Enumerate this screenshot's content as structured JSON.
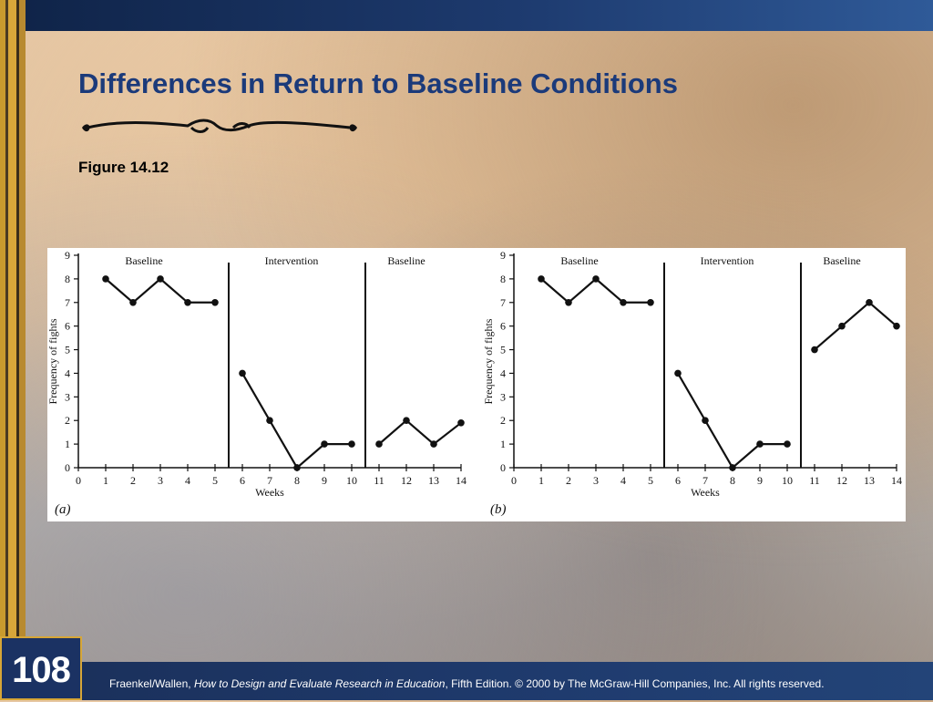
{
  "slide": {
    "title": "Differences in Return to Baseline Conditions",
    "figure_label": "Figure 14.12",
    "page_number": "108"
  },
  "footer": {
    "authors": "Fraenkel/Wallen, ",
    "book_title": "How to Design and Evaluate Research in Education",
    "rest": ", Fifth Edition. © 2000 by The McGraw-Hill Companies, Inc. All rights reserved."
  },
  "colors": {
    "title": "#1b3a7a",
    "top_bar": "#1d3a6e",
    "accent_gold": "#d7a637"
  },
  "chart_data": [
    {
      "type": "line",
      "panel_label": "(a)",
      "xlabel": "Weeks",
      "ylabel": "Frequency of fights",
      "xlim": [
        0,
        14
      ],
      "ylim": [
        0,
        9
      ],
      "x_ticks": [
        0,
        1,
        2,
        3,
        4,
        5,
        6,
        7,
        8,
        9,
        10,
        11,
        12,
        13,
        14
      ],
      "y_ticks": [
        0,
        1,
        2,
        3,
        4,
        5,
        6,
        7,
        8,
        9
      ],
      "phase_dividers": [
        5.5,
        10.5
      ],
      "phase_labels": [
        {
          "label": "Baseline",
          "center": 2.4
        },
        {
          "label": "Intervention",
          "center": 7.8
        },
        {
          "label": "Baseline",
          "center": 12.0
        }
      ],
      "segments": [
        {
          "x": [
            1,
            2,
            3,
            4,
            5
          ],
          "y": [
            8,
            7,
            8,
            7,
            7
          ]
        },
        {
          "x": [
            6,
            7,
            8,
            9,
            10
          ],
          "y": [
            4,
            2,
            0,
            1,
            1
          ]
        },
        {
          "x": [
            11,
            12,
            13,
            14
          ],
          "y": [
            1,
            2,
            1,
            1.9
          ]
        }
      ]
    },
    {
      "type": "line",
      "panel_label": "(b)",
      "xlabel": "Weeks",
      "ylabel": "Frequency of fights",
      "xlim": [
        0,
        14
      ],
      "ylim": [
        0,
        9
      ],
      "x_ticks": [
        0,
        1,
        2,
        3,
        4,
        5,
        6,
        7,
        8,
        9,
        10,
        11,
        12,
        13,
        14
      ],
      "y_ticks": [
        0,
        1,
        2,
        3,
        4,
        5,
        6,
        7,
        8,
        9
      ],
      "phase_dividers": [
        5.5,
        10.5
      ],
      "phase_labels": [
        {
          "label": "Baseline",
          "center": 2.4
        },
        {
          "label": "Intervention",
          "center": 7.8
        },
        {
          "label": "Baseline",
          "center": 12.0
        }
      ],
      "segments": [
        {
          "x": [
            1,
            2,
            3,
            4,
            5
          ],
          "y": [
            8,
            7,
            8,
            7,
            7
          ]
        },
        {
          "x": [
            6,
            7,
            8,
            9,
            10
          ],
          "y": [
            4,
            2,
            0,
            1,
            1
          ]
        },
        {
          "x": [
            11,
            12,
            13,
            14
          ],
          "y": [
            5,
            6,
            7,
            6
          ]
        }
      ]
    }
  ]
}
